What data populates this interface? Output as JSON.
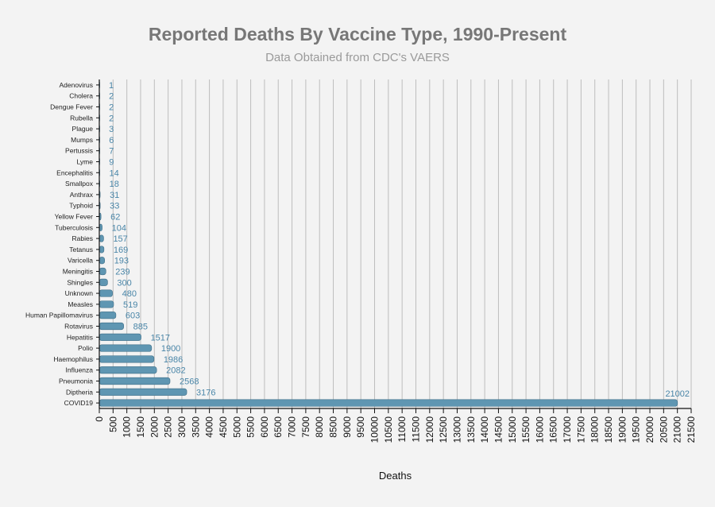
{
  "chart_data": {
    "type": "bar",
    "orientation": "horizontal",
    "title": "Reported Deaths By Vaccine Type, 1990-Present",
    "subtitle": "Data Obtained from CDC's VAERS",
    "xlabel": "Deaths",
    "ylabel": "",
    "xlim": [
      0,
      21500
    ],
    "xtick_step": 500,
    "grid": true,
    "legend": "none",
    "colors": {
      "bar": "#5f96b2",
      "bar_edge": "#3f6f88",
      "value_label": "#4a86a8",
      "grid": "#bdbdbd",
      "axis": "#111111"
    },
    "categories": [
      "Adenovirus",
      "Cholera",
      "Dengue Fever",
      "Rubella",
      "Plague",
      "Mumps",
      "Pertussis",
      "Lyme",
      "Encephalitis",
      "Smallpox",
      "Anthrax",
      "Typhoid",
      "Yellow Fever",
      "Tuberculosis",
      "Rabies",
      "Tetanus",
      "Varicella",
      "Meningitis",
      "Shingles",
      "Unknown",
      "Measles",
      "Human Papillomavirus",
      "Rotavirus",
      "Hepatitis",
      "Polio",
      "Haemophilus",
      "Influenza",
      "Pneumonia",
      "Diptheria",
      "COVID19"
    ],
    "values": [
      1,
      2,
      2,
      2,
      3,
      6,
      7,
      9,
      14,
      18,
      31,
      33,
      62,
      104,
      157,
      169,
      193,
      239,
      300,
      480,
      519,
      603,
      885,
      1517,
      1900,
      1986,
      2082,
      2568,
      3176,
      21002
    ]
  }
}
